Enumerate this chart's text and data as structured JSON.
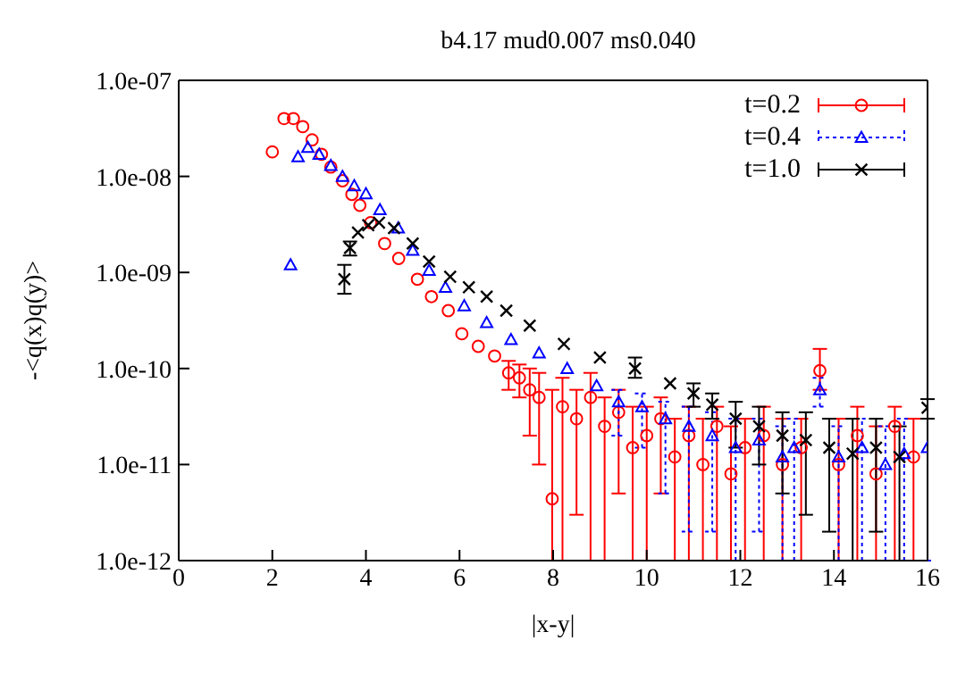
{
  "chart_data": {
    "type": "scatter",
    "title": "b4.17 mud0.007 ms0.040",
    "xlabel": "|x-y|",
    "ylabel": "-<q(x)q(y)>",
    "log": "y",
    "grid": false,
    "legend": "top right",
    "xlim": [
      0,
      16
    ],
    "xticks": [
      0,
      2,
      4,
      6,
      8,
      10,
      12,
      14,
      16
    ],
    "ylim": [
      1e-12,
      1e-07
    ],
    "yticks": [
      {
        "value": 1e-12,
        "label": "1.0e-12"
      },
      {
        "value": 1e-11,
        "label": "1.0e-11"
      },
      {
        "value": 1e-10,
        "label": "1.0e-10"
      },
      {
        "value": 1e-09,
        "label": "1.0e-09"
      },
      {
        "value": 1e-08,
        "label": "1.0e-08"
      },
      {
        "value": 1e-07,
        "label": "1.0e-07"
      }
    ],
    "series": [
      {
        "name": "t=0.2",
        "color": "#ff0000",
        "marker": "circle",
        "line_style": "solid",
        "x": [
          2.0,
          2.25,
          2.45,
          2.65,
          2.85,
          3.05,
          3.25,
          3.5,
          3.7,
          3.87,
          4.1,
          4.4,
          4.7,
          5.1,
          5.4,
          5.76,
          6.05,
          6.4,
          6.75,
          7.05,
          7.28,
          7.5,
          7.7,
          7.98,
          8.2,
          8.5,
          8.8,
          9.1,
          9.4,
          9.7,
          10.0,
          10.3,
          10.6,
          10.9,
          11.2,
          11.5,
          11.8,
          12.1,
          12.5,
          12.9,
          13.3,
          13.7,
          14.1,
          14.5,
          14.9,
          15.3,
          15.7
        ],
        "values": [
          1.8e-08,
          4e-08,
          4e-08,
          3.3e-08,
          2.4e-08,
          1.7e-08,
          1.25e-08,
          9e-09,
          6.5e-09,
          5e-09,
          3.3e-09,
          2e-09,
          1.4e-09,
          8.5e-10,
          5.6e-10,
          4e-10,
          2.3e-10,
          1.7e-10,
          1.35e-10,
          9e-11,
          8e-11,
          6e-11,
          5e-11,
          4.4e-12,
          4e-11,
          3e-11,
          5e-11,
          2.5e-11,
          3.5e-11,
          1.5e-11,
          2e-11,
          3e-11,
          1.2e-11,
          2e-11,
          1e-11,
          2.5e-11,
          8e-12,
          1.5e-11,
          2e-11,
          1e-11,
          1.5e-11,
          9.5e-11,
          1e-11,
          2e-11,
          8e-12,
          2.5e-11,
          1.2e-11
        ],
        "errors": [
          null,
          null,
          null,
          null,
          null,
          null,
          null,
          null,
          null,
          null,
          null,
          null,
          null,
          null,
          null,
          null,
          null,
          null,
          null,
          [
            6e-11,
            1.2e-10
          ],
          [
            5e-11,
            1.1e-10
          ],
          [
            2e-11,
            1e-10
          ],
          [
            1e-11,
            9e-11
          ],
          [
            1e-12,
            6e-11
          ],
          [
            1e-12,
            8e-11
          ],
          [
            3e-12,
            6e-11
          ],
          [
            1e-12,
            9e-11
          ],
          [
            1e-12,
            5e-11
          ],
          [
            5e-12,
            6e-11
          ],
          [
            1e-12,
            4e-11
          ],
          [
            1e-12,
            4e-11
          ],
          [
            5e-12,
            5e-11
          ],
          [
            1e-12,
            3e-11
          ],
          [
            1e-12,
            4e-11
          ],
          [
            1e-12,
            3e-11
          ],
          [
            1e-12,
            4e-11
          ],
          [
            1e-12,
            2.5e-11
          ],
          [
            1e-12,
            3e-11
          ],
          [
            1e-12,
            4e-11
          ],
          [
            1e-12,
            3e-11
          ],
          [
            1e-12,
            3e-11
          ],
          [
            6e-11,
            1.6e-10
          ],
          [
            1e-12,
            3e-11
          ],
          [
            1e-12,
            4e-11
          ],
          [
            1e-12,
            2.5e-11
          ],
          [
            1e-12,
            4e-11
          ],
          [
            1e-12,
            3e-11
          ]
        ]
      },
      {
        "name": "t=0.4",
        "color": "#0000ff",
        "marker": "triangle",
        "line_style": "dotted",
        "x": [
          2.39,
          2.55,
          2.76,
          3.0,
          3.25,
          3.5,
          3.75,
          4.0,
          4.3,
          4.69,
          5.0,
          5.35,
          5.7,
          6.1,
          6.58,
          7.1,
          7.7,
          8.3,
          8.93,
          9.4,
          9.9,
          10.4,
          10.9,
          11.4,
          11.9,
          12.4,
          12.9,
          13.15,
          13.7,
          14.1,
          14.6,
          15.1,
          15.5,
          16.0
        ],
        "values": [
          1.2e-09,
          1.6e-08,
          2e-08,
          1.7e-08,
          1.3e-08,
          1e-08,
          8e-09,
          6.6e-09,
          4.5e-09,
          2.9e-09,
          1.7e-09,
          1.05e-09,
          7e-10,
          4.5e-10,
          3e-10,
          2e-10,
          1.45e-10,
          1e-10,
          6.6e-11,
          4.5e-11,
          4e-11,
          3e-11,
          2.5e-11,
          2e-11,
          1.5e-11,
          1.8e-11,
          1.2e-11,
          1.5e-11,
          6e-11,
          1.2e-11,
          1.5e-11,
          1e-11,
          1.3e-11,
          1.5e-11
        ],
        "errors": [
          null,
          null,
          null,
          null,
          null,
          null,
          null,
          null,
          null,
          null,
          null,
          null,
          null,
          null,
          null,
          null,
          null,
          null,
          null,
          [
            2e-11,
            6e-11
          ],
          [
            1.5e-11,
            5.5e-11
          ],
          [
            5e-12,
            4.5e-11
          ],
          [
            2e-12,
            4e-11
          ],
          [
            2e-12,
            3.5e-11
          ],
          [
            1e-12,
            3e-11
          ],
          [
            2e-12,
            3e-11
          ],
          [
            1e-12,
            2.5e-11
          ],
          [
            1e-12,
            3e-11
          ],
          [
            4e-11,
            8e-11
          ],
          [
            1e-12,
            2.5e-11
          ],
          [
            1e-12,
            3e-11
          ],
          [
            1e-12,
            2.5e-11
          ],
          [
            1e-12,
            3e-11
          ],
          [
            1e-12,
            3e-11
          ]
        ]
      },
      {
        "name": "t=1.0",
        "color": "#000000",
        "marker": "cross",
        "line_style": "solid",
        "x": [
          3.54,
          3.66,
          3.83,
          4.05,
          4.28,
          4.6,
          5.0,
          5.35,
          5.8,
          6.2,
          6.58,
          7.0,
          7.5,
          8.23,
          9.0,
          9.75,
          10.5,
          11.0,
          11.4,
          11.9,
          12.4,
          12.9,
          13.4,
          13.9,
          14.4,
          14.9,
          15.4,
          16.0
        ],
        "values": [
          8.5e-10,
          1.8e-09,
          2.6e-09,
          3.1e-09,
          3.3e-09,
          2.9e-09,
          2e-09,
          1.3e-09,
          9e-10,
          7e-10,
          5.6e-10,
          4e-10,
          2.8e-10,
          1.8e-10,
          1.3e-10,
          1e-10,
          7e-11,
          5.5e-11,
          4.2e-11,
          3e-11,
          2.5e-11,
          2e-11,
          1.8e-11,
          1.5e-11,
          1.3e-11,
          1.5e-11,
          1.2e-11,
          3.9e-11
        ],
        "errors": [
          [
            6e-10,
            1.2e-09
          ],
          [
            1.5e-09,
            2.1e-09
          ],
          null,
          null,
          null,
          null,
          null,
          null,
          null,
          null,
          null,
          null,
          null,
          null,
          null,
          [
            8e-11,
            1.3e-10
          ],
          null,
          [
            4e-11,
            7e-11
          ],
          [
            3e-11,
            5.5e-11
          ],
          [
            1.5e-11,
            4.5e-11
          ],
          [
            1e-11,
            4e-11
          ],
          [
            5e-12,
            3.5e-11
          ],
          [
            3e-12,
            3.5e-11
          ],
          [
            2e-12,
            3e-11
          ],
          [
            1e-12,
            3e-11
          ],
          [
            2e-12,
            3e-11
          ],
          [
            1e-12,
            2.5e-11
          ],
          [
            3e-11,
            4.8e-11
          ]
        ]
      }
    ]
  }
}
